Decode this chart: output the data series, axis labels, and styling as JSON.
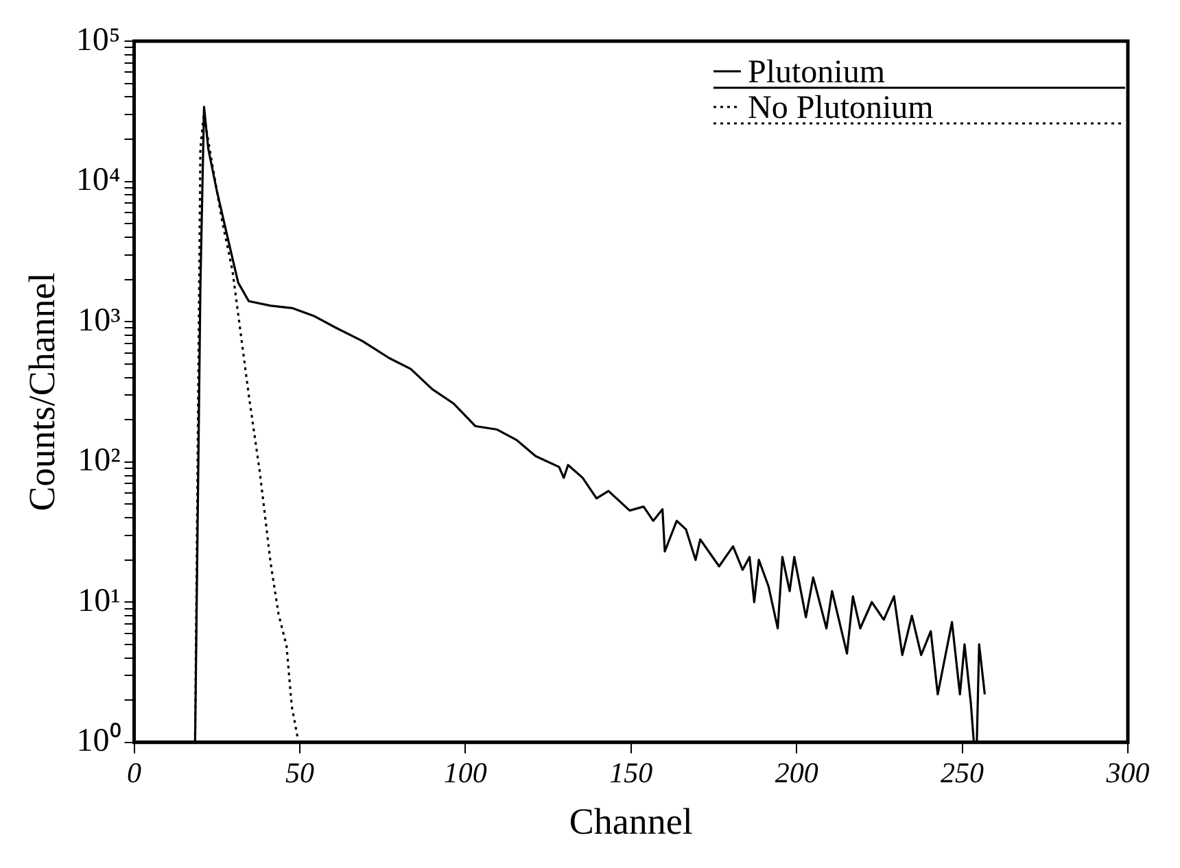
{
  "chart_data": {
    "type": "line",
    "xlabel": "Channel",
    "ylabel": "Counts/Channel",
    "log": "y",
    "legend": "top right",
    "xlim": [
      0,
      300
    ],
    "xticks": [
      0,
      50,
      100,
      150,
      200,
      250,
      300
    ],
    "ylim": [
      1,
      100000
    ],
    "yticks": [
      {
        "value": 1,
        "label": "10⁰"
      },
      {
        "value": 2,
        "label": null
      },
      {
        "value": 3,
        "label": null
      },
      {
        "value": 4,
        "label": null
      },
      {
        "value": 5,
        "label": null
      },
      {
        "value": 6,
        "label": null
      },
      {
        "value": 7,
        "label": null
      },
      {
        "value": 8,
        "label": null
      },
      {
        "value": 9,
        "label": null
      },
      {
        "value": 10,
        "label": "10¹"
      },
      {
        "value": 20,
        "label": null
      },
      {
        "value": 30,
        "label": null
      },
      {
        "value": 40,
        "label": null
      },
      {
        "value": 50,
        "label": null
      },
      {
        "value": 60,
        "label": null
      },
      {
        "value": 70,
        "label": null
      },
      {
        "value": 80,
        "label": null
      },
      {
        "value": 90,
        "label": null
      },
      {
        "value": 100,
        "label": "10²"
      },
      {
        "value": 200,
        "label": null
      },
      {
        "value": 300,
        "label": null
      },
      {
        "value": 400,
        "label": null
      },
      {
        "value": 500,
        "label": null
      },
      {
        "value": 600,
        "label": null
      },
      {
        "value": 700,
        "label": null
      },
      {
        "value": 800,
        "label": null
      },
      {
        "value": 900,
        "label": null
      },
      {
        "value": 1000,
        "label": "10³"
      },
      {
        "value": 2000,
        "label": null
      },
      {
        "value": 3000,
        "label": null
      },
      {
        "value": 4000,
        "label": null
      },
      {
        "value": 5000,
        "label": null
      },
      {
        "value": 6000,
        "label": null
      },
      {
        "value": 7000,
        "label": null
      },
      {
        "value": 8000,
        "label": null
      },
      {
        "value": 9000,
        "label": null
      },
      {
        "value": 10000,
        "label": "10⁴"
      },
      {
        "value": 20000,
        "label": null
      },
      {
        "value": 30000,
        "label": null
      },
      {
        "value": 40000,
        "label": null
      },
      {
        "value": 50000,
        "label": null
      },
      {
        "value": 60000,
        "label": null
      },
      {
        "value": 70000,
        "label": null
      },
      {
        "value": 80000,
        "label": null
      },
      {
        "value": 90000,
        "label": null
      },
      {
        "value": 100000,
        "label": "10⁵"
      }
    ],
    "series": [
      {
        "name": "Plutonium",
        "color": "#000000",
        "line_style": "solid",
        "x": [
          18.4,
          20,
          21.1,
          22.4,
          24.9,
          28.1,
          31.4,
          34.6,
          41.2,
          47.7,
          54.2,
          60.7,
          68.8,
          77,
          83.5,
          90,
          96.5,
          103,
          109.6,
          115.5,
          121.2,
          128.3,
          129.7,
          131,
          135.4,
          139.6,
          143.2,
          149.6,
          153.8,
          156.7,
          159.5,
          160.2,
          163.8,
          166.6,
          169.5,
          170.9,
          176.6,
          180.8,
          183.7,
          185.8,
          187.2,
          188.6,
          191.5,
          194.3,
          195.7,
          197.9,
          199.3,
          202.8,
          205,
          209,
          210.7,
          215.2,
          217,
          219.2,
          222.7,
          226.3,
          229.4,
          231.9,
          234.8,
          237.6,
          240.5,
          242.6,
          246.9,
          249.3,
          250.7,
          252.6,
          253.5,
          254.4,
          255.1,
          256.8
        ],
        "values": [
          1,
          1800,
          34000,
          17000,
          8700,
          4100,
          1900,
          1400,
          1300,
          1250,
          1100,
          910,
          730,
          550,
          460,
          330,
          260,
          180,
          170,
          143,
          110,
          92,
          77,
          95,
          77,
          55,
          62,
          45,
          48,
          38,
          46,
          23,
          38,
          33,
          20,
          28,
          18,
          25,
          17,
          21,
          10,
          20,
          13,
          6.5,
          21,
          12,
          21,
          7.8,
          15,
          6.5,
          12,
          4.3,
          11,
          6.5,
          10,
          7.5,
          11,
          4.2,
          8,
          4.2,
          6.2,
          2.2,
          7.2,
          2.2,
          5,
          1.9,
          1,
          1,
          5,
          2.2
        ]
      },
      {
        "name": "No Plutonium",
        "color": "#000000",
        "line_style": "dotted",
        "x": [
          18.4,
          20,
          21,
          26.5,
          29.7,
          34.6,
          37.9,
          41.2,
          43.6,
          46,
          47.6,
          49.3
        ],
        "values": [
          1,
          17000,
          30000,
          5300,
          2300,
          300,
          86,
          19,
          8.2,
          4.9,
          1.8,
          1.1
        ]
      }
    ]
  }
}
